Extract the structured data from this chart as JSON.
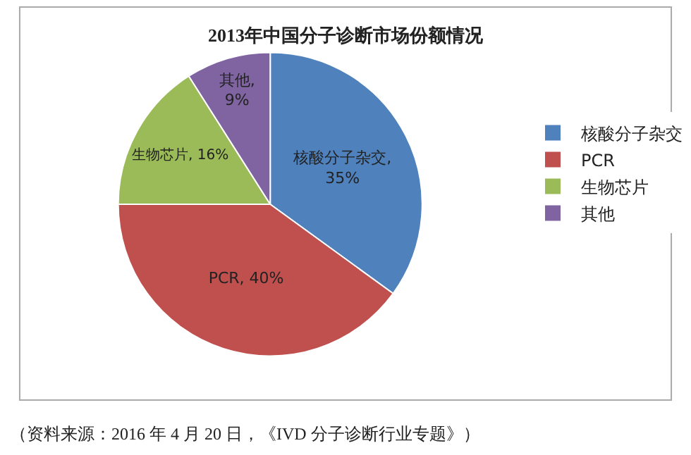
{
  "chart_data": {
    "type": "pie",
    "title": "2013年中国分子诊断市场份额情况",
    "categories": [
      "核酸分子杂交",
      "PCR",
      "生物芯片",
      "其他"
    ],
    "values": [
      35,
      40,
      16,
      9
    ],
    "colors": [
      "#4f81bd",
      "#c0504d",
      "#9bbb59",
      "#8064a2"
    ],
    "value_labels": [
      "核酸分子杂交,\n35%",
      "PCR, 40%",
      "生物芯片, 16%",
      "其他,\n9%"
    ],
    "legend": "right",
    "annotations": [
      "（资料来源：2016 年 4 月 20 日，《IVD 分子诊断行业专题》）"
    ]
  }
}
